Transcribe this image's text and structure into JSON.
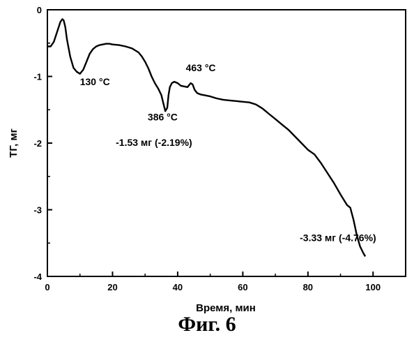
{
  "caption": "Фиг. 6",
  "chart_data": {
    "type": "line",
    "xlabel": "Время, мин",
    "ylabel": "ТГ, мг",
    "xlim": [
      0,
      110
    ],
    "ylim": [
      -4,
      0
    ],
    "xticks": [
      0,
      20,
      40,
      60,
      80,
      100
    ],
    "yticks": [
      0,
      -1,
      -2,
      -3,
      -4
    ],
    "grid": false,
    "series": [
      {
        "x": [
          0,
          1,
          2,
          3,
          4,
          4.6,
          5,
          5.5,
          6,
          7,
          8,
          9,
          10,
          11,
          12,
          13,
          14,
          15,
          16,
          17,
          18,
          19,
          20,
          22,
          24,
          26,
          28,
          29,
          30,
          31,
          32,
          33,
          34,
          35,
          35.6,
          36.2,
          36.8,
          37.2,
          37.6,
          38.2,
          39,
          40,
          41,
          42,
          43,
          44,
          44.6,
          45.2,
          46,
          47,
          48,
          50,
          52,
          54,
          56,
          58,
          60,
          62,
          64,
          66,
          68,
          70,
          72,
          74,
          76,
          78,
          80,
          82,
          84,
          86,
          88,
          90,
          92,
          93,
          94,
          95,
          96,
          97,
          97.6
        ],
        "y": [
          -0.55,
          -0.55,
          -0.48,
          -0.33,
          -0.18,
          -0.14,
          -0.16,
          -0.26,
          -0.44,
          -0.7,
          -0.87,
          -0.93,
          -0.96,
          -0.9,
          -0.78,
          -0.66,
          -0.59,
          -0.55,
          -0.53,
          -0.52,
          -0.51,
          -0.51,
          -0.52,
          -0.53,
          -0.55,
          -0.58,
          -0.64,
          -0.7,
          -0.78,
          -0.88,
          -1.0,
          -1.1,
          -1.18,
          -1.28,
          -1.4,
          -1.52,
          -1.47,
          -1.28,
          -1.16,
          -1.1,
          -1.08,
          -1.1,
          -1.14,
          -1.15,
          -1.16,
          -1.1,
          -1.12,
          -1.2,
          -1.25,
          -1.27,
          -1.28,
          -1.3,
          -1.33,
          -1.35,
          -1.36,
          -1.37,
          -1.38,
          -1.39,
          -1.42,
          -1.48,
          -1.56,
          -1.64,
          -1.72,
          -1.8,
          -1.9,
          -2.0,
          -2.1,
          -2.17,
          -2.3,
          -2.45,
          -2.6,
          -2.77,
          -2.93,
          -2.97,
          -3.15,
          -3.38,
          -3.55,
          -3.65,
          -3.7
        ]
      }
    ],
    "annotations": [
      {
        "text": "130 °C",
        "x": 10,
        "y": -1.13
      },
      {
        "text": "463 °C",
        "x": 42.5,
        "y": -0.92
      },
      {
        "text": "386 °C",
        "x": 30.8,
        "y": -1.66
      },
      {
        "text": "-1.53 мг (-2.19%)",
        "x": 21,
        "y": -2.04
      },
      {
        "text": "-3.33 мг (-4.76%)",
        "x": 77.5,
        "y": -3.47
      }
    ]
  }
}
